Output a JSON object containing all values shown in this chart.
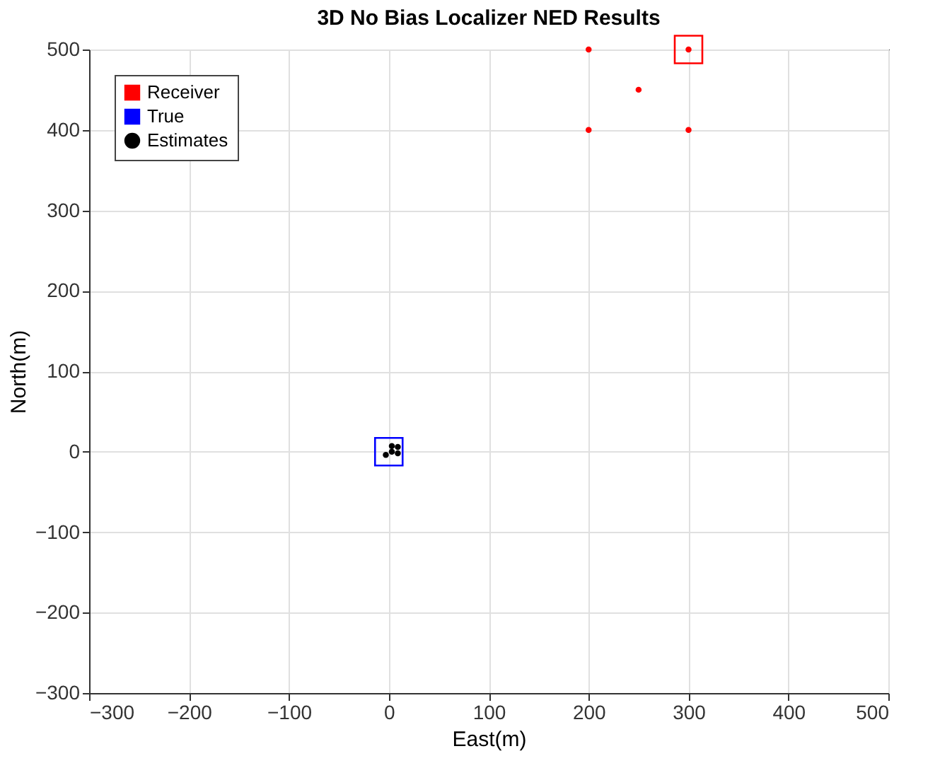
{
  "chart_data": {
    "type": "scatter",
    "title": "3D No Bias Localizer NED Results",
    "xlabel": "East(m)",
    "ylabel": "North(m)",
    "xlim": [
      -300,
      500
    ],
    "ylim": [
      -300,
      500
    ],
    "xticks": [
      -300,
      -200,
      -100,
      0,
      100,
      200,
      300,
      400,
      500
    ],
    "yticks": [
      -300,
      -200,
      -100,
      0,
      100,
      200,
      300,
      400,
      500
    ],
    "grid": true,
    "legend": "top left",
    "series": [
      {
        "name": "Receiver",
        "color": "#ff0000",
        "marker": "square",
        "x": [
          300
        ],
        "values": [
          500
        ]
      },
      {
        "color": "#ff0000",
        "marker": "circle",
        "x": [
          200,
          250,
          200,
          300,
          300
        ],
        "values": [
          500,
          450,
          400,
          400,
          500
        ]
      },
      {
        "name": "True",
        "color": "#0000ff",
        "marker": "square",
        "x": [
          0
        ],
        "values": [
          0
        ]
      },
      {
        "name": "Estimates",
        "color": "#000000",
        "marker": "circle",
        "x": [
          -3,
          3,
          9,
          3,
          9
        ],
        "values": [
          -4,
          0,
          6,
          7,
          -2
        ]
      }
    ]
  }
}
